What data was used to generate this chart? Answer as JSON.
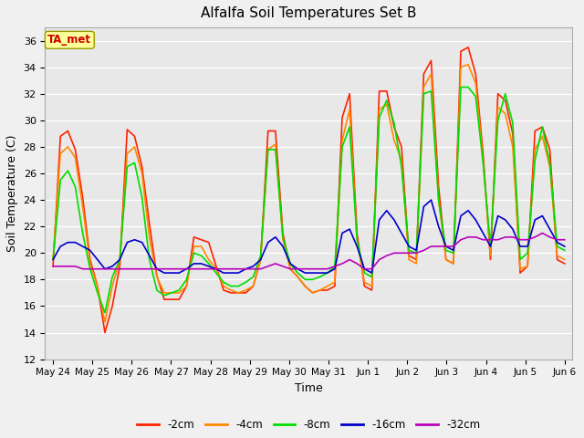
{
  "title": "Alfalfa Soil Temperatures Set B",
  "xlabel": "Time",
  "ylabel": "Soil Temperature (C)",
  "ylim": [
    12,
    37
  ],
  "yticks": [
    12,
    14,
    16,
    18,
    20,
    22,
    24,
    26,
    28,
    30,
    32,
    34,
    36
  ],
  "fig_bg_color": "#f0f0f0",
  "plot_bg_color": "#e8e8e8",
  "legend_bg_color": "#ffffff",
  "annotation_text": "TA_met",
  "annotation_color": "#cc0000",
  "annotation_bg": "#ffff99",
  "annotation_edge": "#999900",
  "legend_labels": [
    "-2cm",
    "-4cm",
    "-8cm",
    "-16cm",
    "-32cm"
  ],
  "line_colors": [
    "#ff2200",
    "#ff8800",
    "#00dd00",
    "#0000cc",
    "#bb00bb"
  ],
  "line_widths": [
    1.2,
    1.2,
    1.2,
    1.2,
    1.2
  ],
  "xtick_labels": [
    "May 24",
    "May 25",
    "May 26",
    "May 27",
    "May 28",
    "May 29",
    "May 30",
    "May 31",
    "Jun 1",
    "Jun 2",
    "Jun 3",
    "Jun 4",
    "Jun 5",
    "Jun 6"
  ],
  "series_2cm": [
    19.0,
    28.8,
    29.2,
    27.8,
    24.2,
    19.5,
    17.5,
    14.0,
    16.0,
    19.0,
    29.3,
    28.8,
    26.5,
    22.2,
    18.3,
    16.5,
    16.5,
    16.5,
    17.5,
    21.2,
    21.0,
    20.8,
    19.0,
    17.2,
    17.0,
    17.0,
    17.0,
    17.5,
    19.5,
    29.2,
    29.2,
    21.5,
    18.8,
    18.2,
    17.5,
    17.0,
    17.2,
    17.2,
    17.5,
    30.2,
    32.0,
    21.5,
    17.5,
    17.2,
    32.2,
    32.2,
    29.5,
    28.0,
    19.8,
    19.5,
    33.5,
    34.5,
    25.0,
    19.5,
    19.2,
    35.2,
    35.5,
    33.5,
    27.5,
    19.5,
    32.0,
    31.5,
    29.0,
    18.5,
    19.0,
    29.2,
    29.5,
    27.8,
    19.5,
    19.2
  ],
  "series_4cm": [
    19.5,
    27.5,
    28.0,
    27.2,
    23.5,
    19.2,
    17.5,
    14.8,
    17.5,
    19.5,
    27.5,
    28.0,
    26.0,
    21.2,
    18.2,
    17.0,
    17.0,
    17.0,
    17.5,
    20.5,
    20.5,
    19.5,
    18.8,
    17.5,
    17.2,
    17.0,
    17.2,
    17.5,
    19.5,
    27.8,
    28.2,
    21.0,
    18.8,
    18.2,
    17.5,
    17.0,
    17.2,
    17.5,
    17.8,
    28.5,
    30.8,
    21.0,
    17.8,
    17.5,
    30.8,
    31.2,
    28.5,
    27.0,
    19.5,
    19.2,
    32.5,
    33.5,
    24.0,
    19.5,
    19.2,
    34.0,
    34.2,
    32.8,
    27.0,
    19.8,
    31.0,
    30.5,
    28.0,
    18.8,
    19.0,
    27.8,
    28.8,
    26.5,
    19.8,
    19.5
  ],
  "series_8cm": [
    19.5,
    25.5,
    26.2,
    25.0,
    21.5,
    18.8,
    17.0,
    15.5,
    18.2,
    19.5,
    26.5,
    26.8,
    24.2,
    19.5,
    17.2,
    16.8,
    17.0,
    17.2,
    18.0,
    20.0,
    19.8,
    19.2,
    18.5,
    17.8,
    17.5,
    17.5,
    17.8,
    18.2,
    19.8,
    27.8,
    27.8,
    21.2,
    19.2,
    18.5,
    18.0,
    18.0,
    18.2,
    18.5,
    19.0,
    28.0,
    29.5,
    21.0,
    18.5,
    18.2,
    30.2,
    31.5,
    29.8,
    26.5,
    20.2,
    20.0,
    32.0,
    32.2,
    24.0,
    20.2,
    20.0,
    32.5,
    32.5,
    31.8,
    26.8,
    20.5,
    30.0,
    32.0,
    29.8,
    19.5,
    20.0,
    27.0,
    29.5,
    26.8,
    20.5,
    20.2
  ],
  "series_16cm": [
    19.5,
    20.5,
    20.8,
    20.8,
    20.5,
    20.2,
    19.5,
    18.8,
    19.0,
    19.5,
    20.8,
    21.0,
    20.8,
    19.8,
    18.8,
    18.5,
    18.5,
    18.5,
    18.8,
    19.2,
    19.2,
    19.0,
    18.8,
    18.5,
    18.5,
    18.5,
    18.8,
    19.0,
    19.5,
    20.8,
    21.2,
    20.5,
    19.2,
    18.8,
    18.5,
    18.5,
    18.5,
    18.5,
    18.8,
    21.5,
    21.8,
    20.5,
    18.8,
    18.5,
    22.5,
    23.2,
    22.5,
    21.5,
    20.5,
    20.2,
    23.5,
    24.0,
    22.0,
    20.5,
    20.2,
    22.8,
    23.2,
    22.5,
    21.5,
    20.5,
    22.8,
    22.5,
    21.8,
    20.5,
    20.5,
    22.5,
    22.8,
    21.8,
    20.8,
    20.5
  ],
  "series_32cm": [
    19.0,
    19.0,
    19.0,
    19.0,
    18.8,
    18.8,
    18.8,
    18.8,
    18.8,
    18.8,
    18.8,
    18.8,
    18.8,
    18.8,
    18.8,
    18.8,
    18.8,
    18.8,
    18.8,
    18.8,
    18.8,
    18.8,
    18.8,
    18.8,
    18.8,
    18.8,
    18.8,
    18.8,
    18.8,
    19.0,
    19.2,
    19.0,
    18.8,
    18.8,
    18.8,
    18.8,
    18.8,
    18.8,
    19.0,
    19.2,
    19.5,
    19.2,
    18.8,
    18.8,
    19.5,
    19.8,
    20.0,
    20.0,
    20.0,
    20.0,
    20.2,
    20.5,
    20.5,
    20.5,
    20.5,
    21.0,
    21.2,
    21.2,
    21.0,
    21.0,
    21.0,
    21.2,
    21.2,
    21.0,
    21.0,
    21.2,
    21.5,
    21.2,
    21.0,
    21.0
  ]
}
